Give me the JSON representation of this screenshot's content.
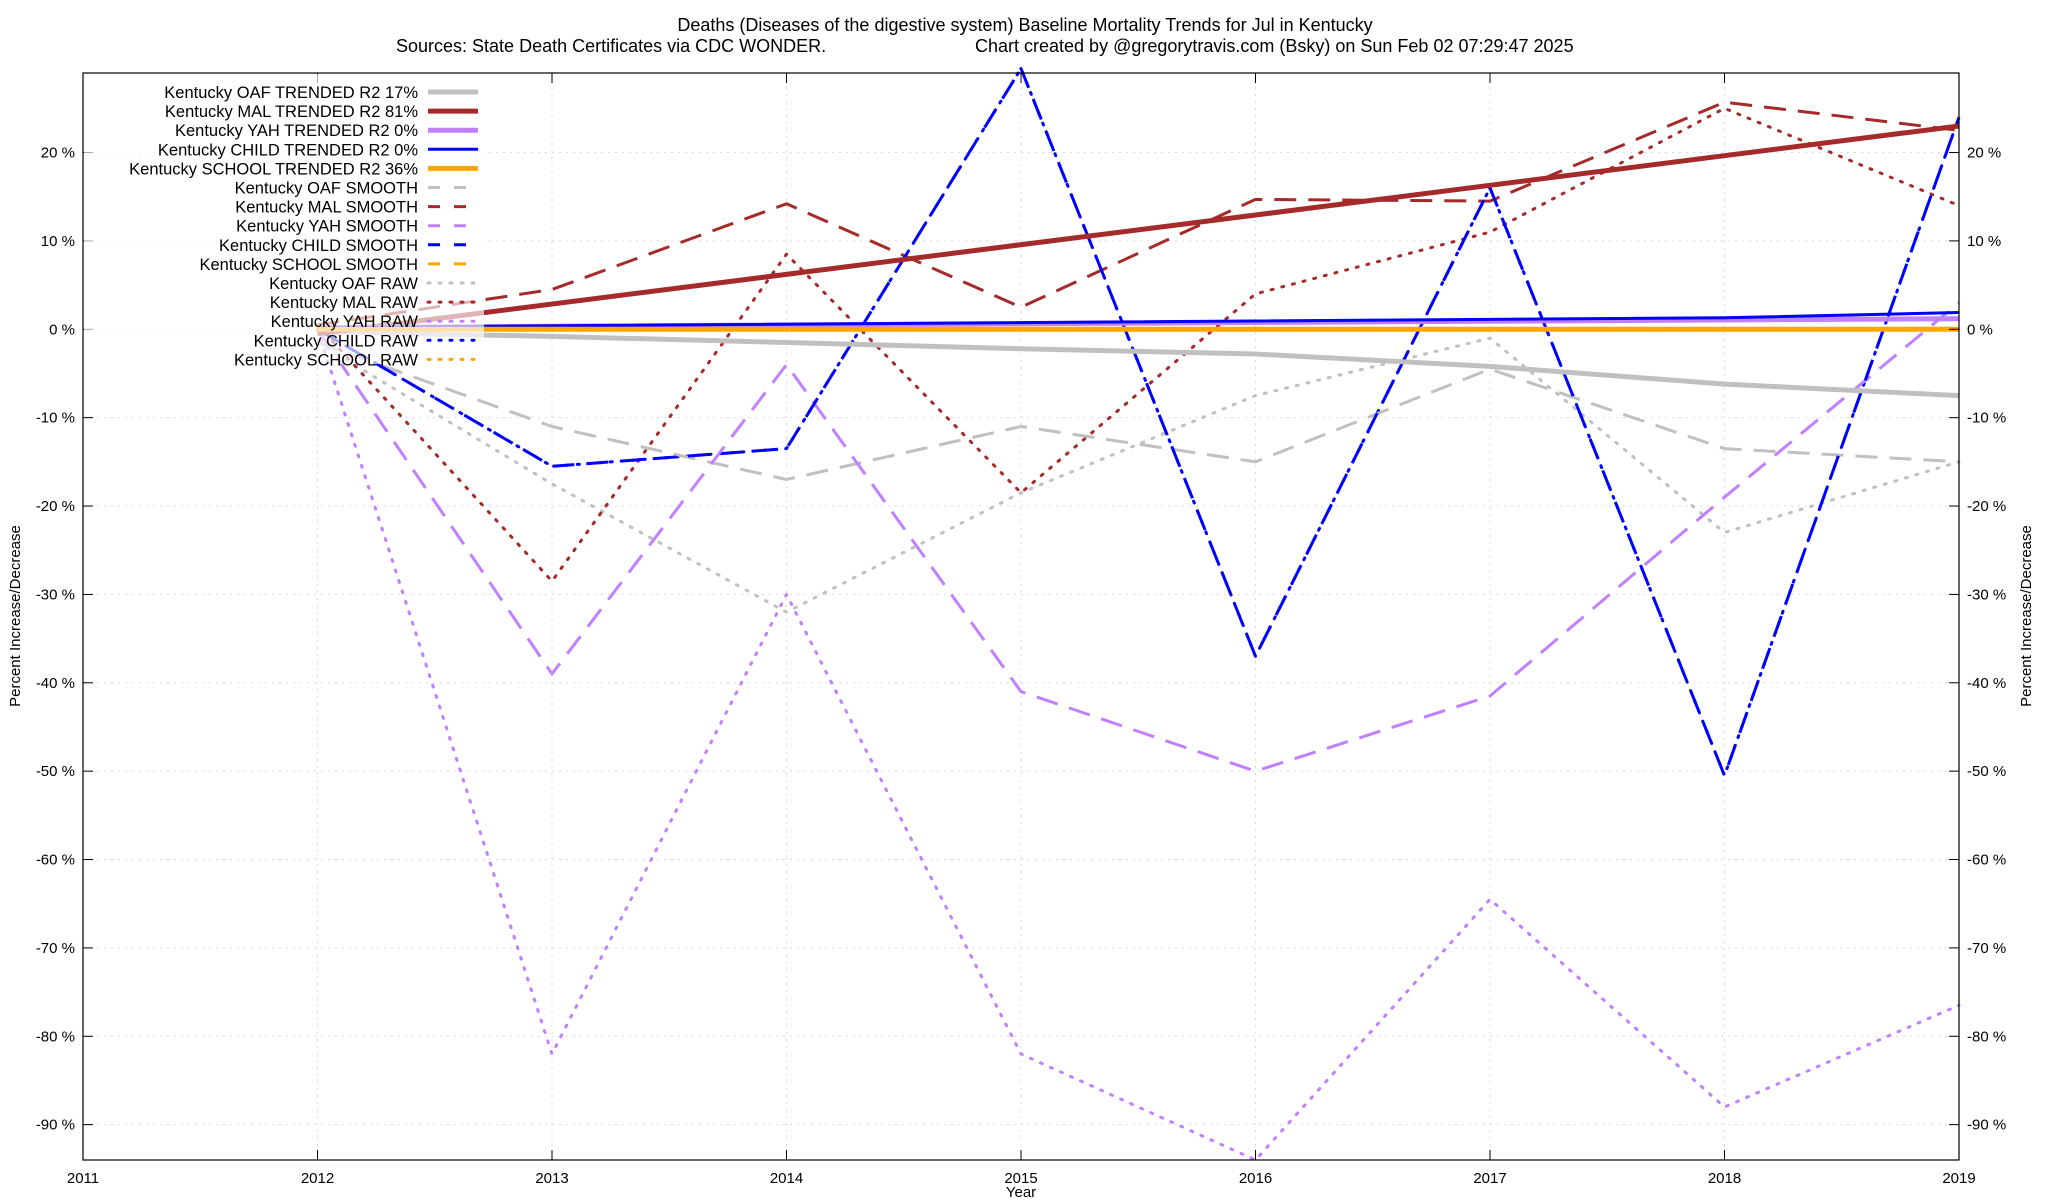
{
  "chart_data": {
    "type": "line",
    "title": "Deaths (Diseases of the digestive system)  Baseline Mortality Trends for Jul in Kentucky",
    "subtitle_left": "Sources: State Death Certificates via CDC WONDER.",
    "subtitle_right": "Chart created by @gregorytravis.com (Bsky) on Sun Feb 02 07:29:47 2025",
    "xlabel": "Year",
    "ylabel": "Percent Increase/Decrease",
    "ylabel_right": "Percent Increase/Decrease",
    "xlim": [
      2011,
      2019
    ],
    "ylim": [
      -94,
      29
    ],
    "x_ticks": [
      "2011",
      "2012",
      "2013",
      "2014",
      "2015",
      "2016",
      "2017",
      "2018",
      "2019"
    ],
    "y_ticks": [
      {
        "value": 20,
        "label": "20 %"
      },
      {
        "value": 10,
        "label": "10 %"
      },
      {
        "value": 0,
        "label": "0 %"
      },
      {
        "value": -10,
        "label": "-10 %"
      },
      {
        "value": -20,
        "label": "-20 %"
      },
      {
        "value": -30,
        "label": "-30 %"
      },
      {
        "value": -40,
        "label": "-40 %"
      },
      {
        "value": -50,
        "label": "-50 %"
      },
      {
        "value": -60,
        "label": "-60 %"
      },
      {
        "value": -70,
        "label": "-70 %"
      },
      {
        "value": -80,
        "label": "-80 %"
      },
      {
        "value": -90,
        "label": "-90 %"
      }
    ],
    "grid": true,
    "legend_position": "top-left",
    "series": [
      {
        "name": "Kentucky OAF TRENDED R2  17%",
        "color": "#c0c0c0",
        "style": "solid",
        "width": 5,
        "x": [
          2012,
          2013,
          2014,
          2015,
          2016,
          2017,
          2018,
          2019
        ],
        "y": [
          -0.3,
          -0.8,
          -1.5,
          -2.2,
          -2.8,
          -4.2,
          -6.2,
          -7.5
        ]
      },
      {
        "name": "Kentucky MAL TRENDED R2  81%",
        "color": "#a52a2a",
        "style": "solid",
        "width": 5,
        "x": [
          2012,
          2019
        ],
        "y": [
          -0.5,
          23
        ]
      },
      {
        "name": "Kentucky YAH TRENDED R2   0%",
        "color": "#c080ff",
        "style": "solid",
        "width": 5,
        "x": [
          2012,
          2019
        ],
        "y": [
          0.2,
          1.2
        ]
      },
      {
        "name": "Kentucky CHILD TRENDED R2   0%",
        "color": "#0000ff",
        "style": "solid",
        "width": 3,
        "x": [
          2012,
          2018,
          2019
        ],
        "y": [
          0.2,
          1.3,
          1.9
        ]
      },
      {
        "name": "Kentucky SCHOOL TRENDED R2  36%",
        "color": "#ffa500",
        "style": "solid",
        "width": 5,
        "x": [
          2012,
          2019
        ],
        "y": [
          0,
          0
        ]
      },
      {
        "name": "Kentucky OAF SMOOTH",
        "color": "#c0c0c0",
        "style": "dashed",
        "width": 3,
        "x": [
          2012,
          2013,
          2014,
          2015,
          2016,
          2017,
          2018,
          2019
        ],
        "y": [
          -1.5,
          -11,
          -17,
          -11,
          -15,
          -4.5,
          -13.5,
          -15
        ]
      },
      {
        "name": "Kentucky MAL SMOOTH",
        "color": "#a52a2a",
        "style": "dashed",
        "width": 3,
        "x": [
          2012,
          2013,
          2014,
          2015,
          2016,
          2017,
          2018,
          2019
        ],
        "y": [
          0.5,
          4.5,
          14.2,
          2.5,
          14.7,
          14.5,
          25.7,
          22.5
        ]
      },
      {
        "name": "Kentucky YAH SMOOTH",
        "color": "#c080ff",
        "style": "dashed",
        "width": 3,
        "x": [
          2012,
          2013,
          2014,
          2015,
          2016,
          2017,
          2018,
          2019
        ],
        "y": [
          0,
          -39,
          -4,
          -41,
          -50,
          -41.5,
          -19,
          3
        ]
      },
      {
        "name": "Kentucky CHILD SMOOTH",
        "color": "#0000ff",
        "style": "dashed",
        "width": 3,
        "x": [
          2012,
          2013,
          2014,
          2015,
          2016,
          2017,
          2018,
          2019
        ],
        "y": [
          0,
          -15.5,
          -13.5,
          29.5,
          -37,
          16,
          -50.5,
          24
        ]
      },
      {
        "name": "Kentucky SCHOOL SMOOTH",
        "color": "#ffa500",
        "style": "dashed",
        "width": 3,
        "x": [
          2012,
          2013,
          2014,
          2015,
          2016,
          2017,
          2018,
          2019
        ],
        "y": [
          0,
          0,
          0,
          0,
          0,
          0,
          0,
          0
        ]
      },
      {
        "name": "Kentucky OAF RAW",
        "color": "#c0c0c0",
        "style": "dotted",
        "width": 3,
        "x": [
          2012,
          2013,
          2014,
          2015,
          2016,
          2017,
          2018,
          2019
        ],
        "y": [
          -1.5,
          -17.5,
          -32,
          -18.5,
          -7.5,
          -1,
          -23,
          -15
        ]
      },
      {
        "name": "Kentucky MAL RAW",
        "color": "#a52a2a",
        "style": "dotted",
        "width": 3,
        "x": [
          2012,
          2013,
          2014,
          2015,
          2016,
          2017,
          2018,
          2019
        ],
        "y": [
          0.5,
          -28.5,
          8.5,
          -18.5,
          4,
          11,
          25,
          14
        ]
      },
      {
        "name": "Kentucky YAH RAW",
        "color": "#c080ff",
        "style": "dotted",
        "width": 3,
        "x": [
          2012,
          2013,
          2014,
          2015,
          2016,
          2017,
          2018,
          2019
        ],
        "y": [
          0,
          -82,
          -30,
          -82,
          -94,
          -64.5,
          -88,
          -76.5
        ]
      },
      {
        "name": "Kentucky CHILD RAW",
        "color": "#0000ff",
        "style": "dotted",
        "width": 3,
        "x": [
          2012,
          2013,
          2014,
          2015,
          2016,
          2017,
          2018,
          2019
        ],
        "y": [
          0,
          -15.5,
          -13.5,
          29.5,
          -37,
          16,
          -50.5,
          24
        ]
      },
      {
        "name": "Kentucky SCHOOL RAW",
        "color": "#ffa500",
        "style": "dotted",
        "width": 3,
        "x": [
          2012,
          2013,
          2014,
          2015,
          2016,
          2017,
          2018,
          2019
        ],
        "y": [
          0,
          0,
          0,
          0,
          0,
          0,
          0,
          0
        ]
      }
    ]
  }
}
